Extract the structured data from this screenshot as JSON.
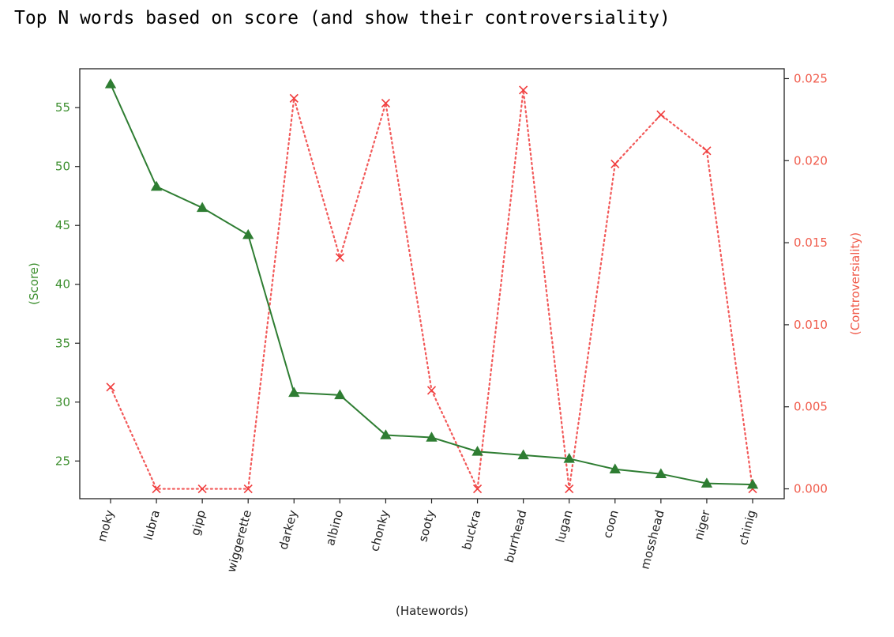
{
  "title": "Top N words based on score (and show their controversiality)",
  "chart_data": {
    "type": "line",
    "categories": [
      "moky",
      "lubra",
      "gipp",
      "wiggerette",
      "darkey",
      "albino",
      "chonky",
      "sooty",
      "buckra",
      "burrhead",
      "lugan",
      "coon",
      "mosshead",
      "niger",
      "chinig"
    ],
    "series": [
      {
        "axis": "left",
        "color": "#2e7d32",
        "marker": "triangle",
        "line_style": "solid",
        "values": [
          57.0,
          48.3,
          46.5,
          44.2,
          30.8,
          30.6,
          27.2,
          27.0,
          25.8,
          25.5,
          25.2,
          24.3,
          23.9,
          23.1,
          23.0
        ]
      },
      {
        "axis": "right",
        "color": "#f03c3c",
        "marker": "x",
        "line_style": "dotted",
        "values": [
          0.0062,
          0.0,
          0.0,
          0.0,
          0.0238,
          0.0141,
          0.0235,
          0.006,
          0.0,
          0.0243,
          0.0,
          0.0198,
          0.0228,
          0.0206,
          0.0
        ]
      }
    ],
    "xlabel": "(Hatewords)",
    "ylabel_left": "(Score)",
    "ylabel_right": "(Controversiality)",
    "ylim_left": [
      21.8,
      58.3
    ],
    "ylim_right": [
      -0.0006,
      0.0256
    ],
    "yticks_left": [
      25,
      30,
      35,
      40,
      45,
      50,
      55
    ],
    "yticks_right": [
      "0.000",
      "0.005",
      "0.010",
      "0.015",
      "0.020",
      "0.025"
    ],
    "left_axis_color": "#3d8f2f",
    "right_axis_color": "#f05a4a",
    "grid": false
  }
}
